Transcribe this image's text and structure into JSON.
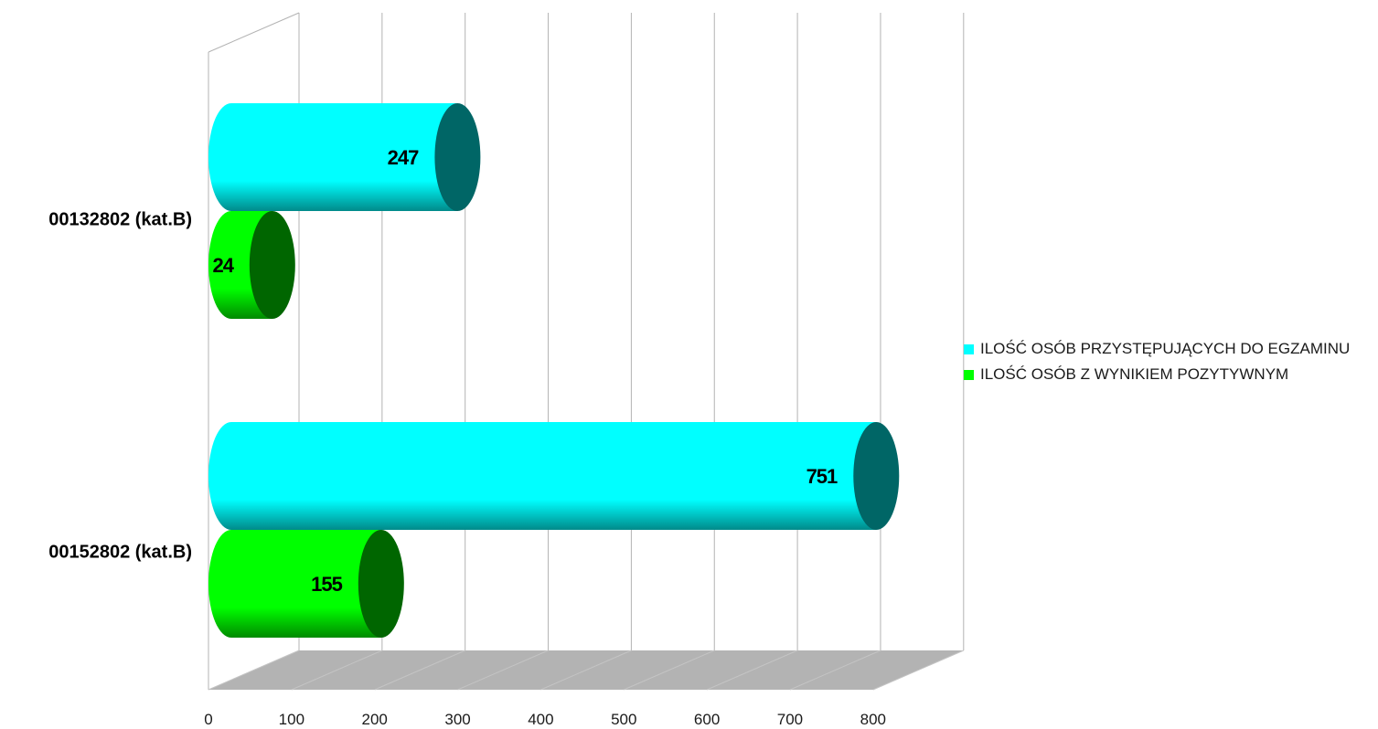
{
  "chart_data": {
    "type": "bar",
    "orientation": "horizontal",
    "three_d": true,
    "bar_shape": "cylinder",
    "categories": [
      "00132802 (kat.B)",
      "00152802 (kat.B)"
    ],
    "series": [
      {
        "name": "ILOŚĆ OSÓB PRZYSTĘPUJĄCYCH DO EGZAMINU",
        "values": [
          247,
          751
        ],
        "color": "#00ffff",
        "shade": "#006666"
      },
      {
        "name": "ILOŚĆ OSÓB Z WYNIKIEM POZYTYWNYM",
        "values": [
          24,
          155
        ],
        "color": "#00ff00",
        "shade": "#006600"
      }
    ],
    "data_labels": [
      [
        "247",
        "751"
      ],
      [
        "24",
        "155"
      ]
    ],
    "xlim": [
      0,
      800
    ],
    "xticks": [
      0,
      100,
      200,
      300,
      400,
      500,
      600,
      700,
      800
    ],
    "xtick_labels": [
      "0",
      "100",
      "200",
      "300",
      "400",
      "500",
      "600",
      "700",
      "800"
    ],
    "grid": true,
    "legend_position": "right",
    "floor_color": "#b3b3b3",
    "title": "",
    "xlabel": "",
    "ylabel": ""
  }
}
